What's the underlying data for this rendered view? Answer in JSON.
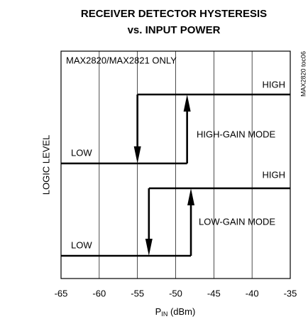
{
  "chart_data": {
    "type": "hysteresis",
    "title": [
      "RECEIVER DETECTOR HYSTERESIS",
      "vs. INPUT POWER"
    ],
    "annotation": "MAX2820/MAX2821 ONLY",
    "side_note": "MAX2820 toc06",
    "y_label": "LOGIC LEVEL",
    "x_label": {
      "main": "P",
      "sub": "IN",
      "unit": " (dBm)"
    },
    "xlim": [
      -65,
      -35
    ],
    "xticks": [
      -65,
      -60,
      -55,
      -50,
      -45,
      -40,
      -35
    ],
    "grid": true,
    "curves": [
      {
        "mode": "HIGH-GAIN MODE",
        "high_label": "HIGH",
        "low_label": "LOW",
        "rise_x": -48.5,
        "fall_x": -55
      },
      {
        "mode": "LOW-GAIN MODE",
        "high_label": "HIGH",
        "low_label": "LOW",
        "rise_x": -48,
        "fall_x": -53.5
      }
    ]
  }
}
